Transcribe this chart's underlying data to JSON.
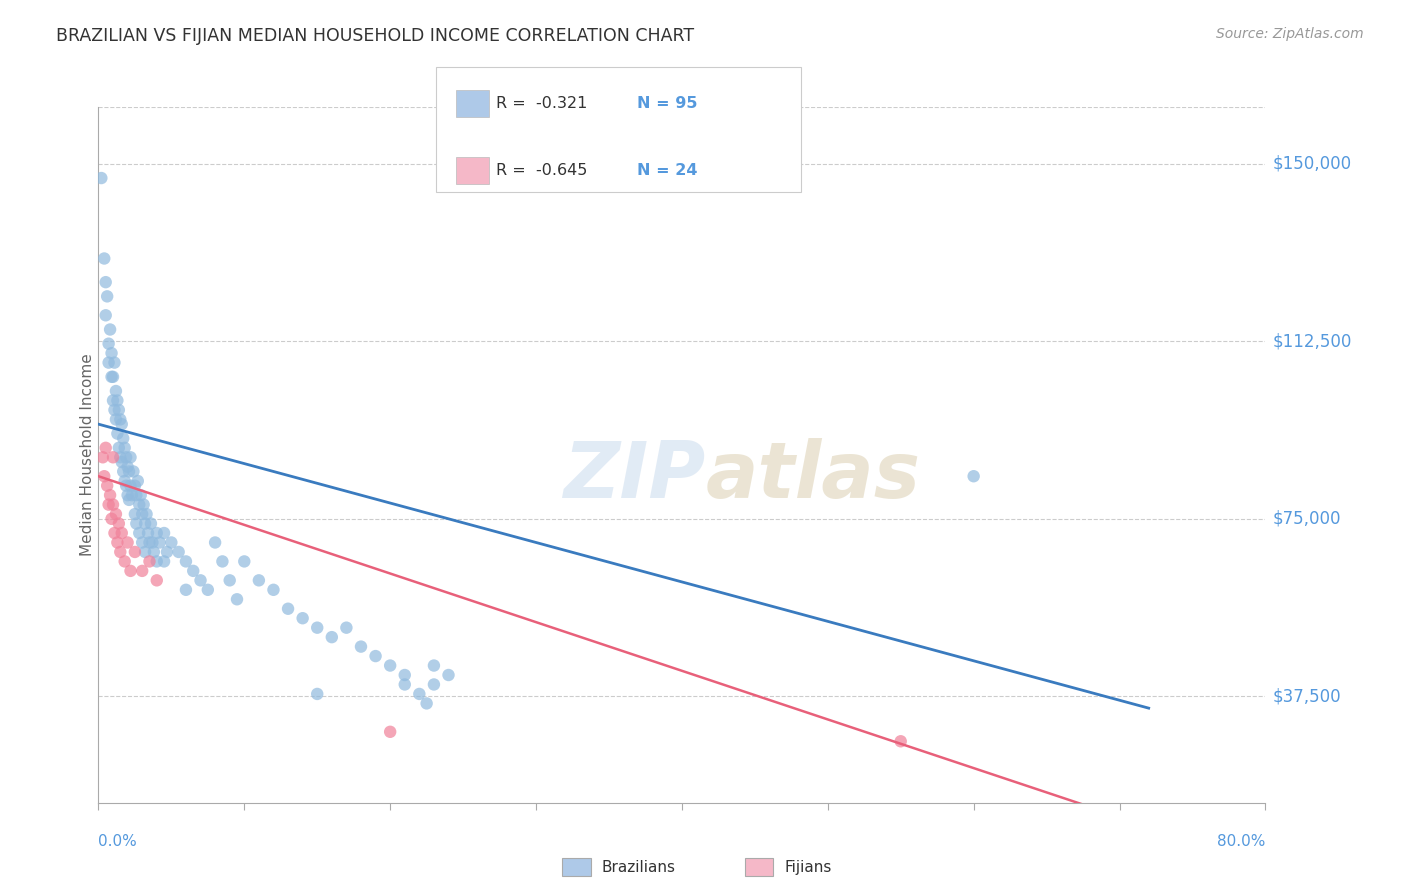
{
  "title": "BRAZILIAN VS FIJIAN MEDIAN HOUSEHOLD INCOME CORRELATION CHART",
  "source": "Source: ZipAtlas.com",
  "ylabel": "Median Household Income",
  "ytick_labels": [
    "$37,500",
    "$75,000",
    "$112,500",
    "$150,000"
  ],
  "ytick_values": [
    37500,
    75000,
    112500,
    150000
  ],
  "ymin": 15000,
  "ymax": 162000,
  "xmin": 0.0,
  "xmax": 0.8,
  "watermark_zip": "ZIP",
  "watermark_atlas": "atlas",
  "legend_r1": "R =  -0.321",
  "legend_n1": "N = 95",
  "legend_r2": "R =  -0.645",
  "legend_n2": "N = 24",
  "legend_color1": "#aec9e8",
  "legend_color2": "#f5b8c8",
  "brazilian_color": "#90bade",
  "fijian_color": "#f08099",
  "trend_blue": "#3a7bbf",
  "trend_pink": "#e8607a",
  "background_color": "#ffffff",
  "grid_color": "#cccccc",
  "title_color": "#333333",
  "axis_label_color": "#666666",
  "ytick_color": "#5599dd",
  "xtick_end_color": "#5599dd",
  "legend_text_color": "#333333",
  "legend_value_color": "#5599dd",
  "brazilian_points": [
    [
      0.002,
      147000
    ],
    [
      0.004,
      130000
    ],
    [
      0.005,
      125000
    ],
    [
      0.005,
      118000
    ],
    [
      0.006,
      122000
    ],
    [
      0.007,
      112000
    ],
    [
      0.007,
      108000
    ],
    [
      0.008,
      115000
    ],
    [
      0.009,
      110000
    ],
    [
      0.009,
      105000
    ],
    [
      0.01,
      105000
    ],
    [
      0.01,
      100000
    ],
    [
      0.011,
      108000
    ],
    [
      0.011,
      98000
    ],
    [
      0.012,
      102000
    ],
    [
      0.012,
      96000
    ],
    [
      0.013,
      100000
    ],
    [
      0.013,
      93000
    ],
    [
      0.014,
      98000
    ],
    [
      0.014,
      90000
    ],
    [
      0.015,
      96000
    ],
    [
      0.015,
      88000
    ],
    [
      0.016,
      95000
    ],
    [
      0.016,
      87000
    ],
    [
      0.017,
      92000
    ],
    [
      0.017,
      85000
    ],
    [
      0.018,
      90000
    ],
    [
      0.018,
      83000
    ],
    [
      0.019,
      88000
    ],
    [
      0.019,
      82000
    ],
    [
      0.02,
      86000
    ],
    [
      0.02,
      80000
    ],
    [
      0.021,
      85000
    ],
    [
      0.021,
      79000
    ],
    [
      0.022,
      88000
    ],
    [
      0.022,
      82000
    ],
    [
      0.023,
      80000
    ],
    [
      0.024,
      85000
    ],
    [
      0.025,
      82000
    ],
    [
      0.025,
      76000
    ],
    [
      0.026,
      80000
    ],
    [
      0.026,
      74000
    ],
    [
      0.027,
      83000
    ],
    [
      0.028,
      78000
    ],
    [
      0.028,
      72000
    ],
    [
      0.029,
      80000
    ],
    [
      0.03,
      76000
    ],
    [
      0.03,
      70000
    ],
    [
      0.031,
      78000
    ],
    [
      0.032,
      74000
    ],
    [
      0.032,
      68000
    ],
    [
      0.033,
      76000
    ],
    [
      0.034,
      72000
    ],
    [
      0.035,
      70000
    ],
    [
      0.036,
      74000
    ],
    [
      0.037,
      70000
    ],
    [
      0.038,
      68000
    ],
    [
      0.04,
      72000
    ],
    [
      0.04,
      66000
    ],
    [
      0.042,
      70000
    ],
    [
      0.045,
      72000
    ],
    [
      0.045,
      66000
    ],
    [
      0.047,
      68000
    ],
    [
      0.05,
      70000
    ],
    [
      0.055,
      68000
    ],
    [
      0.06,
      66000
    ],
    [
      0.06,
      60000
    ],
    [
      0.065,
      64000
    ],
    [
      0.07,
      62000
    ],
    [
      0.075,
      60000
    ],
    [
      0.08,
      70000
    ],
    [
      0.085,
      66000
    ],
    [
      0.09,
      62000
    ],
    [
      0.095,
      58000
    ],
    [
      0.1,
      66000
    ],
    [
      0.11,
      62000
    ],
    [
      0.12,
      60000
    ],
    [
      0.13,
      56000
    ],
    [
      0.14,
      54000
    ],
    [
      0.15,
      52000
    ],
    [
      0.16,
      50000
    ],
    [
      0.17,
      52000
    ],
    [
      0.18,
      48000
    ],
    [
      0.19,
      46000
    ],
    [
      0.2,
      44000
    ],
    [
      0.21,
      42000
    ],
    [
      0.21,
      40000
    ],
    [
      0.22,
      38000
    ],
    [
      0.225,
      36000
    ],
    [
      0.23,
      44000
    ],
    [
      0.23,
      40000
    ],
    [
      0.24,
      42000
    ],
    [
      0.15,
      38000
    ],
    [
      0.6,
      84000
    ]
  ],
  "fijian_points": [
    [
      0.003,
      88000
    ],
    [
      0.004,
      84000
    ],
    [
      0.005,
      90000
    ],
    [
      0.006,
      82000
    ],
    [
      0.007,
      78000
    ],
    [
      0.008,
      80000
    ],
    [
      0.009,
      75000
    ],
    [
      0.01,
      78000
    ],
    [
      0.01,
      88000
    ],
    [
      0.011,
      72000
    ],
    [
      0.012,
      76000
    ],
    [
      0.013,
      70000
    ],
    [
      0.014,
      74000
    ],
    [
      0.015,
      68000
    ],
    [
      0.016,
      72000
    ],
    [
      0.018,
      66000
    ],
    [
      0.02,
      70000
    ],
    [
      0.022,
      64000
    ],
    [
      0.025,
      68000
    ],
    [
      0.03,
      64000
    ],
    [
      0.035,
      66000
    ],
    [
      0.04,
      62000
    ],
    [
      0.2,
      30000
    ],
    [
      0.55,
      28000
    ]
  ],
  "blue_line": [
    [
      0.0,
      95000
    ],
    [
      0.72,
      35000
    ]
  ],
  "pink_line": [
    [
      0.0,
      84000
    ],
    [
      0.72,
      10000
    ]
  ]
}
